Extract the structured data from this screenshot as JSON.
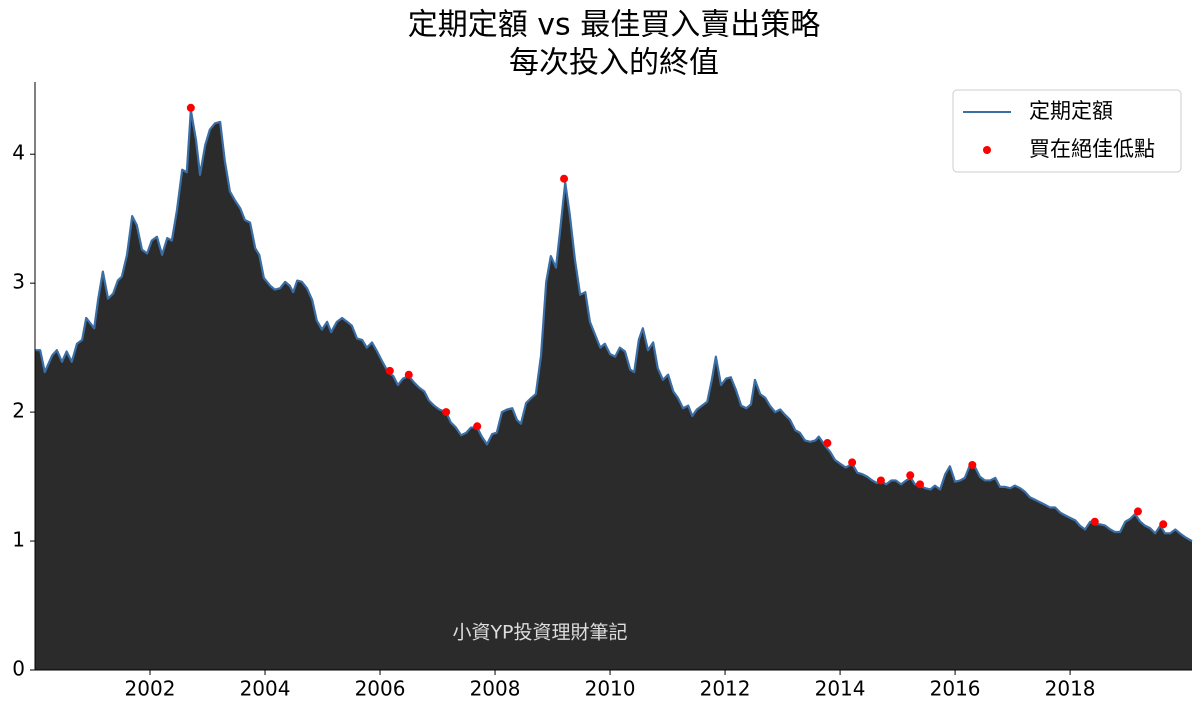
{
  "chart_data": {
    "type": "line",
    "title": "定期定額 vs 最佳買入賣出策略",
    "subtitle": "每次投入的終值",
    "annotation": "小資YP投資理財筆記",
    "xlim": [
      2000,
      2020.12
    ],
    "xticks": [
      2002,
      2004,
      2006,
      2008,
      2010,
      2012,
      2014,
      2016,
      2018
    ],
    "ylim": [
      0,
      4.56
    ],
    "yticks": [
      0,
      1,
      2,
      3,
      4
    ],
    "grid": false,
    "legend": "upper right",
    "series": [
      {
        "name": "定期定額",
        "type": "line",
        "color": "#3a6ea5",
        "fill_color": "#2b2b2b",
        "x": [
          2000.0,
          2000.09,
          2000.17,
          2000.3,
          2000.38,
          2000.47,
          2000.55,
          2000.64,
          2000.73,
          2000.82,
          2000.89,
          2001.03,
          2001.1,
          2001.18,
          2001.27,
          2001.36,
          2001.44,
          2001.51,
          2001.6,
          2001.69,
          2001.77,
          2001.86,
          2001.95,
          2002.03,
          2002.12,
          2002.21,
          2002.3,
          2002.38,
          2002.47,
          2002.56,
          2002.64,
          2002.71,
          2002.8,
          2002.87,
          2002.96,
          2003.04,
          2003.13,
          2003.22,
          2003.3,
          2003.39,
          2003.48,
          2003.57,
          2003.65,
          2003.74,
          2003.83,
          2003.9,
          2003.98,
          2004.09,
          2004.17,
          2004.26,
          2004.35,
          2004.43,
          2004.49,
          2004.56,
          2004.64,
          2004.73,
          2004.82,
          2004.9,
          2004.99,
          2005.08,
          2005.15,
          2005.25,
          2005.34,
          2005.43,
          2005.51,
          2005.6,
          2005.69,
          2005.77,
          2005.86,
          2005.95,
          2006.03,
          2006.14,
          2006.23,
          2006.31,
          2006.4,
          2006.5,
          2006.59,
          2006.68,
          2006.77,
          2006.85,
          2006.94,
          2007.03,
          2007.15,
          2007.23,
          2007.32,
          2007.41,
          2007.5,
          2007.58,
          2007.69,
          2007.77,
          2007.86,
          2007.95,
          2008.03,
          2008.12,
          2008.21,
          2008.3,
          2008.38,
          2008.45,
          2008.54,
          2008.63,
          2008.71,
          2008.8,
          2008.89,
          2008.97,
          2009.06,
          2009.13,
          2009.22,
          2009.3,
          2009.39,
          2009.48,
          2009.57,
          2009.65,
          2009.74,
          2009.83,
          2009.91,
          2010.0,
          2010.09,
          2010.17,
          2010.26,
          2010.35,
          2010.42,
          2010.5,
          2010.57,
          2010.66,
          2010.75,
          2010.83,
          2010.92,
          2011.01,
          2011.1,
          2011.18,
          2011.27,
          2011.36,
          2011.43,
          2011.51,
          2011.6,
          2011.69,
          2011.77,
          2011.84,
          2011.93,
          2012.02,
          2012.1,
          2012.19,
          2012.28,
          2012.37,
          2012.45,
          2012.52,
          2012.61,
          2012.7,
          2012.78,
          2012.87,
          2012.96,
          2013.04,
          2013.13,
          2013.22,
          2013.3,
          2013.39,
          2013.48,
          2013.57,
          2013.63,
          2013.74,
          2013.83,
          2013.91,
          2014.0,
          2014.1,
          2014.21,
          2014.3,
          2014.38,
          2014.47,
          2014.56,
          2014.64,
          2014.71,
          2014.8,
          2014.89,
          2014.97,
          2015.06,
          2015.15,
          2015.23,
          2015.3,
          2015.39,
          2015.48,
          2015.57,
          2015.65,
          2015.74,
          2015.83,
          2015.91,
          2016.0,
          2016.09,
          2016.17,
          2016.26,
          2016.35,
          2016.43,
          2016.52,
          2016.61,
          2016.7,
          2016.78,
          2016.87,
          2016.96,
          2017.04,
          2017.13,
          2017.22,
          2017.3,
          2017.39,
          2017.48,
          2017.57,
          2017.65,
          2017.74,
          2017.83,
          2017.91,
          2018.0,
          2018.09,
          2018.17,
          2018.26,
          2018.35,
          2018.43,
          2018.52,
          2018.61,
          2018.7,
          2018.78,
          2018.87,
          2018.96,
          2019.04,
          2019.13,
          2019.22,
          2019.3,
          2019.39,
          2019.48,
          2019.57,
          2019.65,
          2019.74,
          2019.83,
          2019.91,
          2020.0,
          2020.12
        ],
        "values": [
          2.48,
          2.48,
          2.31,
          2.44,
          2.48,
          2.39,
          2.47,
          2.39,
          2.53,
          2.56,
          2.73,
          2.65,
          2.88,
          3.09,
          2.88,
          2.92,
          3.02,
          3.05,
          3.22,
          3.52,
          3.45,
          3.26,
          3.23,
          3.33,
          3.36,
          3.22,
          3.35,
          3.33,
          3.57,
          3.88,
          3.86,
          4.34,
          4.11,
          3.84,
          4.07,
          4.19,
          4.24,
          4.25,
          3.95,
          3.71,
          3.64,
          3.58,
          3.49,
          3.47,
          3.27,
          3.22,
          3.04,
          2.98,
          2.95,
          2.96,
          3.01,
          2.98,
          2.93,
          3.02,
          3.01,
          2.96,
          2.87,
          2.71,
          2.64,
          2.7,
          2.62,
          2.7,
          2.73,
          2.7,
          2.67,
          2.57,
          2.56,
          2.5,
          2.54,
          2.47,
          2.4,
          2.31,
          2.28,
          2.21,
          2.26,
          2.28,
          2.23,
          2.19,
          2.16,
          2.09,
          2.05,
          2.02,
          2.0,
          1.92,
          1.88,
          1.82,
          1.84,
          1.88,
          1.88,
          1.81,
          1.75,
          1.83,
          1.84,
          2.0,
          2.02,
          2.03,
          1.94,
          1.91,
          2.07,
          2.11,
          2.14,
          2.44,
          3.01,
          3.21,
          3.12,
          3.4,
          3.78,
          3.53,
          3.18,
          2.91,
          2.93,
          2.7,
          2.6,
          2.5,
          2.53,
          2.45,
          2.43,
          2.5,
          2.47,
          2.33,
          2.31,
          2.56,
          2.65,
          2.48,
          2.54,
          2.34,
          2.25,
          2.29,
          2.16,
          2.11,
          2.03,
          2.05,
          1.97,
          2.02,
          2.05,
          2.08,
          2.25,
          2.43,
          2.21,
          2.26,
          2.27,
          2.17,
          2.05,
          2.03,
          2.06,
          2.25,
          2.14,
          2.11,
          2.05,
          2.0,
          2.02,
          1.98,
          1.94,
          1.86,
          1.84,
          1.78,
          1.77,
          1.78,
          1.81,
          1.74,
          1.69,
          1.63,
          1.6,
          1.57,
          1.6,
          1.53,
          1.52,
          1.5,
          1.47,
          1.45,
          1.47,
          1.44,
          1.47,
          1.47,
          1.44,
          1.47,
          1.49,
          1.44,
          1.43,
          1.41,
          1.4,
          1.43,
          1.4,
          1.52,
          1.58,
          1.46,
          1.47,
          1.49,
          1.59,
          1.57,
          1.5,
          1.47,
          1.47,
          1.49,
          1.42,
          1.42,
          1.41,
          1.43,
          1.41,
          1.38,
          1.34,
          1.32,
          1.3,
          1.28,
          1.26,
          1.26,
          1.22,
          1.2,
          1.18,
          1.16,
          1.12,
          1.09,
          1.15,
          1.13,
          1.13,
          1.12,
          1.09,
          1.07,
          1.07,
          1.15,
          1.17,
          1.21,
          1.15,
          1.12,
          1.1,
          1.06,
          1.12,
          1.06,
          1.06,
          1.09,
          1.06,
          1.03,
          1.0
        ]
      },
      {
        "name": "買在絕佳低點",
        "type": "scatter",
        "color": "#ff0000",
        "x": [
          2002.71,
          2006.17,
          2006.5,
          2007.15,
          2007.69,
          2009.2,
          2013.78,
          2014.21,
          2014.71,
          2015.22,
          2015.39,
          2016.3,
          2018.43,
          2019.18,
          2019.62
        ],
        "values": [
          4.36,
          2.32,
          2.29,
          2.0,
          1.89,
          3.81,
          1.76,
          1.61,
          1.47,
          1.51,
          1.44,
          1.59,
          1.15,
          1.23,
          1.13
        ]
      }
    ]
  }
}
